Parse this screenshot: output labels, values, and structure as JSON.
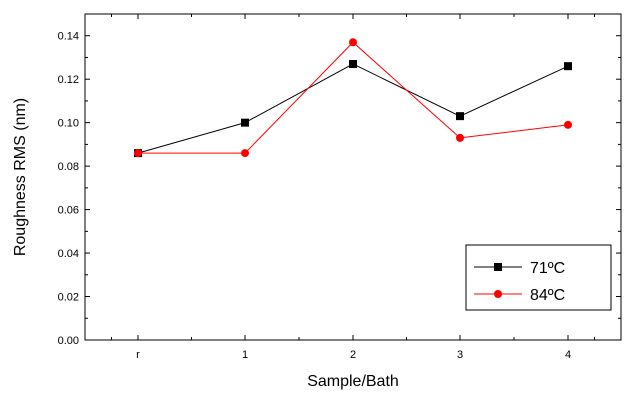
{
  "chart_data": {
    "type": "line",
    "categories": [
      "r",
      "1",
      "2",
      "3",
      "4"
    ],
    "series": [
      {
        "name": "71ºC",
        "values": [
          0.086,
          0.1,
          0.127,
          0.103,
          0.126
        ],
        "color": "#000000",
        "marker": "square"
      },
      {
        "name": "84ºC",
        "values": [
          0.086,
          0.086,
          0.137,
          0.093,
          0.099
        ],
        "color": "#ff0000",
        "marker": "circle"
      }
    ],
    "xlabel": "Sample/Bath",
    "ylabel": "Roughness  RMS (nm)",
    "ylim": [
      0,
      0.15
    ],
    "yticks": [
      "0.00",
      "0.02",
      "0.04",
      "0.06",
      "0.08",
      "0.10",
      "0.12",
      "0.14"
    ],
    "grid": false,
    "legend_position": "bottom-right"
  }
}
